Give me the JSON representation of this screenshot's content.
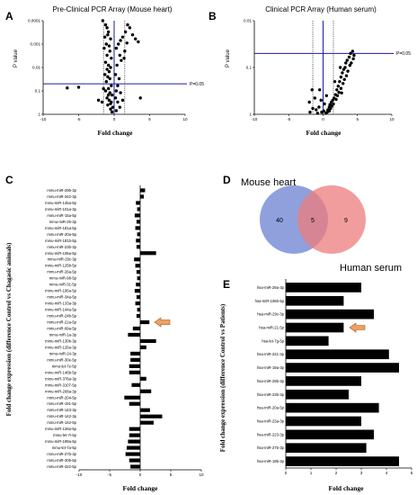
{
  "chart_data": [
    {
      "id": "A",
      "type": "scatter",
      "letter": "A",
      "title": "Pre-Clinical PCR Array (Mouse heart)",
      "xlabel": "Fold change",
      "ylabel": "P value",
      "xlim": [
        -10,
        10
      ],
      "x_ticks": [
        "-10",
        "-5",
        "0",
        "5",
        "10"
      ],
      "y_log": true,
      "ylim": [
        0.0001,
        1
      ],
      "y_ticks": [
        "0.0001",
        "0.001",
        "0.01",
        "0.1",
        "1"
      ],
      "threshold_label": "P=0.05",
      "threshold_p": 0.05,
      "fold_lines": [
        -1.5,
        1.5
      ],
      "points": [
        [
          -1.6,
          0.0001
        ],
        [
          -1.2,
          0.00015
        ],
        [
          -1.0,
          0.0002
        ],
        [
          -0.8,
          0.0003
        ],
        [
          -1.3,
          0.0005
        ],
        [
          -0.9,
          0.0004
        ],
        [
          -0.5,
          0.0006
        ],
        [
          -1.1,
          0.001
        ],
        [
          -0.7,
          0.0012
        ],
        [
          -1.4,
          0.0015
        ],
        [
          -0.6,
          0.002
        ],
        [
          -1.0,
          0.003
        ],
        [
          -0.4,
          0.004
        ],
        [
          -1.2,
          0.006
        ],
        [
          -0.8,
          0.008
        ],
        [
          -0.5,
          0.01
        ],
        [
          -1.0,
          0.012
        ],
        [
          -0.7,
          0.015
        ],
        [
          -1.3,
          0.02
        ],
        [
          -0.9,
          0.025
        ],
        [
          -0.6,
          0.03
        ],
        [
          -1.1,
          0.04
        ],
        [
          -0.4,
          0.06
        ],
        [
          -0.8,
          0.08
        ],
        [
          -1.2,
          0.1
        ],
        [
          -0.6,
          0.12
        ],
        [
          -0.3,
          0.15
        ],
        [
          -1.0,
          0.2
        ],
        [
          -0.7,
          0.25
        ],
        [
          -0.4,
          0.3
        ],
        [
          -0.9,
          0.4
        ],
        [
          -0.2,
          0.5
        ],
        [
          -0.5,
          0.6
        ],
        [
          -0.3,
          0.8
        ],
        [
          -0.8,
          0.15
        ],
        [
          -1.5,
          0.08
        ],
        [
          -1.7,
          0.3
        ],
        [
          -0.5,
          0.35
        ],
        [
          0.3,
          0.0015
        ],
        [
          0.6,
          0.001
        ],
        [
          0.9,
          0.0007
        ],
        [
          1.2,
          0.0005
        ],
        [
          1.6,
          0.0003
        ],
        [
          1.9,
          0.00015
        ],
        [
          2.2,
          0.0002
        ],
        [
          2.6,
          0.0004
        ],
        [
          3.0,
          0.0006
        ],
        [
          3.4,
          0.0008
        ],
        [
          1.5,
          0.002
        ],
        [
          0.8,
          0.003
        ],
        [
          0.4,
          0.008
        ],
        [
          1.0,
          0.005
        ],
        [
          0.2,
          0.02
        ],
        [
          0.5,
          0.06
        ],
        [
          0.7,
          0.03
        ],
        [
          0.3,
          0.1
        ],
        [
          0.9,
          0.12
        ],
        [
          0.2,
          0.2
        ],
        [
          1.2,
          0.25
        ],
        [
          0.5,
          0.3
        ],
        [
          0.8,
          0.5
        ],
        [
          0.3,
          0.7
        ],
        [
          1.4,
          0.004
        ],
        [
          1.8,
          0.0009
        ],
        [
          -5.0,
          0.07
        ],
        [
          -6.6,
          0.075
        ],
        [
          -2.2,
          0.25
        ],
        [
          3.7,
          0.2
        ]
      ]
    },
    {
      "id": "B",
      "type": "scatter",
      "letter": "B",
      "title": "Clinical PCR Array (Human serum)",
      "xlabel": "Fold change",
      "ylabel": "P value",
      "xlim": [
        -10,
        10
      ],
      "x_ticks": [
        "-10",
        "-5",
        "0",
        "5",
        "10"
      ],
      "y_log": true,
      "ylim": [
        0.01,
        1
      ],
      "y_ticks": [
        "0.01",
        "0.1",
        "1"
      ],
      "threshold_label": "P=0.05",
      "threshold_p": 0.05,
      "fold_lines": [
        -1.5,
        1.5
      ],
      "points": [
        [
          4.0,
          0.05
        ],
        [
          4.3,
          0.045
        ],
        [
          3.8,
          0.06
        ],
        [
          4.5,
          0.055
        ],
        [
          3.5,
          0.07
        ],
        [
          4.1,
          0.08
        ],
        [
          3.9,
          0.09
        ],
        [
          4.4,
          0.065
        ],
        [
          3.2,
          0.1
        ],
        [
          3.6,
          0.12
        ],
        [
          3.0,
          0.11
        ],
        [
          2.8,
          0.13
        ],
        [
          3.4,
          0.15
        ],
        [
          2.6,
          0.16
        ],
        [
          3.1,
          0.18
        ],
        [
          2.4,
          0.2
        ],
        [
          2.9,
          0.22
        ],
        [
          2.2,
          0.25
        ],
        [
          2.6,
          0.28
        ],
        [
          2.0,
          0.3
        ],
        [
          2.3,
          0.34
        ],
        [
          1.8,
          0.38
        ],
        [
          2.1,
          0.4
        ],
        [
          1.6,
          0.45
        ],
        [
          1.9,
          0.48
        ],
        [
          1.4,
          0.5
        ],
        [
          1.2,
          0.55
        ],
        [
          1.5,
          0.6
        ],
        [
          1.0,
          0.62
        ],
        [
          1.3,
          0.66
        ],
        [
          0.9,
          0.7
        ],
        [
          1.1,
          0.75
        ],
        [
          0.7,
          0.8
        ],
        [
          0.9,
          0.85
        ],
        [
          0.6,
          0.9
        ],
        [
          1.7,
          0.2
        ],
        [
          2.5,
          0.1
        ],
        [
          3.3,
          0.08
        ],
        [
          2.7,
          0.35
        ],
        [
          0.4,
          0.95
        ],
        [
          0.2,
          0.6
        ],
        [
          0.5,
          0.4
        ],
        [
          0.1,
          0.85
        ],
        [
          -0.3,
          0.5
        ],
        [
          -0.6,
          0.7
        ],
        [
          -0.2,
          0.9
        ],
        [
          -1.0,
          0.8
        ],
        [
          -1.6,
          0.3
        ],
        [
          -1.2,
          0.45
        ],
        [
          -0.8,
          0.95
        ],
        [
          -1.5,
          0.75
        ],
        [
          -2.0,
          0.55
        ],
        [
          -0.5,
          0.3
        ],
        [
          -1.9,
          0.9
        ]
      ]
    },
    {
      "id": "C",
      "type": "bar",
      "orientation": "horizontal",
      "letter": "C",
      "xlabel": "Fold change",
      "ylabel": "Fold change expression (difference Control vs Chagasic animals)",
      "xlim": [
        -10,
        10
      ],
      "x_ticks": [
        "-10",
        "-5",
        "0",
        "5",
        "10"
      ],
      "highlight": "mmu-miR-21a-5p",
      "categories": [
        "mmu-miR-29b-3p",
        "mmu-miR-342-3p",
        "mmu-miR-145a-5p",
        "mmu-miR-101a-3p",
        "mmu-miR-15a-5p",
        "mmu-miR-26-3p",
        "mmu-miR-181a-5p",
        "mmu-miR-20a-5p",
        "mmu-miR-181b-5p",
        "mmu-miR-23b-3p",
        "mmu-miR-106a-5p",
        "mmu-miR-29c-3p",
        "mmu-miR-125b-5p",
        "mmu-miR-26a-5p",
        "mmu-miR-98-5p",
        "mmu-miR-31-5p",
        "mmu-miR-195a-5p",
        "mmu-miR-34a-5p",
        "mmu-miR-133a-3p",
        "mmu-miR-144a-5p",
        "mmu-miR-24b-5p",
        "mmu-miR-21a-5p",
        "mmu-miR-99a-5p",
        "mmu-miR-1a-3p",
        "mmu-miR-130b-3p",
        "mmu-miR-126a-3p",
        "mmu-miR-24-3p",
        "mmu-miR-30e-5p",
        "mmu-let-7e-5p",
        "mmu-miR-146b-5p",
        "mmu-miR-378a-3p",
        "mmu-miR-3107-5p",
        "mmu-miR-208a-3p",
        "mmu-miR-204-5p",
        "mmu-miR-191-5p",
        "mmu-miR-143-3p",
        "mmu-miR-142-3p",
        "mmu-miR-142-5p",
        "mmu-miR-126a-5p",
        "mmu-let-7i-5p",
        "mmu-miR-199a-5p",
        "mmu-let-7a-5p",
        "mmu-miR-27b-3p",
        "mmu-miR-30b-5p",
        "mmu-miR-322-5p"
      ],
      "values": [
        0.8,
        0.6,
        -0.7,
        -0.5,
        -0.9,
        -0.6,
        -0.8,
        -0.5,
        -0.7,
        -0.6,
        2.6,
        -1.0,
        -0.8,
        -0.6,
        -0.5,
        -0.7,
        -0.9,
        -0.6,
        -0.8,
        -0.5,
        -0.6,
        1.5,
        -1.2,
        -2.0,
        2.6,
        1.0,
        -1.6,
        -1.6,
        -1.8,
        -1.8,
        1.0,
        -1.4,
        1.8,
        -2.6,
        -1.8,
        1.6,
        3.6,
        2.2,
        -1.8,
        -1.8,
        -2.0,
        -2.2,
        -2.4,
        -1.8,
        -1.6
      ]
    },
    {
      "id": "D",
      "type": "venn",
      "letter": "D",
      "set_a": "Mouse heart",
      "set_b": "Human serum",
      "only_a": "40",
      "both": "5",
      "only_b": "9",
      "color_a": "#7b8fd6",
      "color_b": "#ee7c7c"
    },
    {
      "id": "E",
      "type": "bar",
      "orientation": "horizontal",
      "letter": "E",
      "xlabel": "Fold change",
      "ylabel": "Fold change expression (difference Control vs Patients)",
      "xlim": [
        0,
        5
      ],
      "x_ticks": [
        "0",
        "1",
        "2",
        "3",
        "4",
        "5"
      ],
      "highlight": "hsa-miR-21-5p",
      "categories": [
        "hsa-miR-29a-3p",
        "hsa-miR-106b-5p",
        "hsa-miR-29c-3p",
        "hsa-miR-21-5p",
        "hsa-let-7g-5p",
        "hsa-miR-221-3p",
        "hsa-miR-19a-3p",
        "hsa-miR-29b-3p",
        "hsa-miR-23b-3p",
        "hsa-miR-20a-5p",
        "hsa-miR-23a-3p",
        "hsa-miR-223-3p",
        "hsa-miR-27b-3p",
        "hsa-miR-19b-3p"
      ],
      "values": [
        3.0,
        2.3,
        3.5,
        2.3,
        1.7,
        4.1,
        4.5,
        3.0,
        2.5,
        3.7,
        3.0,
        3.5,
        3.2,
        4.5
      ]
    }
  ],
  "colors": {
    "threshold_line": "#1a1aa6",
    "bar": "#000000",
    "arrow_fill": "#f0a060",
    "arrow_stroke": "#a05a20"
  }
}
